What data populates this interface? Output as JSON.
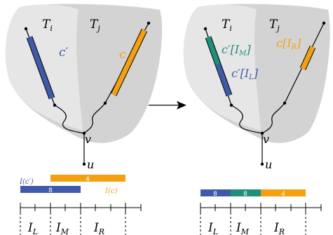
{
  "colors": {
    "blue": "#3f5aa8",
    "orange": "#f4a010",
    "teal": "#1e8f7a",
    "region_dark": "#d3d3d3",
    "region_light": "#e6e6e6"
  },
  "left": {
    "labels": {
      "Ti": "T",
      "Ti_sub": "i",
      "Tj": "T",
      "Tj_sub": "j",
      "c_prime": "c′",
      "c": "c",
      "v": "v",
      "u": "u"
    },
    "bars": {
      "blue_caption": "I(c′)",
      "blue_value": "8",
      "orange_caption": "I(c)",
      "orange_value": "4"
    },
    "intervals": {
      "L": "I",
      "L_sub": "L",
      "M": "I",
      "M_sub": "M",
      "R": "I",
      "R_sub": "R"
    }
  },
  "right": {
    "labels": {
      "Ti": "T",
      "Ti_sub": "i",
      "Tj": "T",
      "Tj_sub": "j",
      "c_prime_M": "c′[I",
      "c_prime_M_sub": "M",
      "c_prime_L": "c′[I",
      "c_prime_L_sub": "L",
      "c_R": "c[I",
      "c_R_sub": "R",
      "close": "]",
      "v": "v",
      "u": "u"
    },
    "bars": {
      "blue_value": "8",
      "teal_value": "8",
      "orange_value": "4"
    },
    "intervals": {
      "L": "I",
      "L_sub": "L",
      "M": "I",
      "M_sub": "M",
      "R": "I",
      "R_sub": "R"
    }
  },
  "arrow": "transform"
}
